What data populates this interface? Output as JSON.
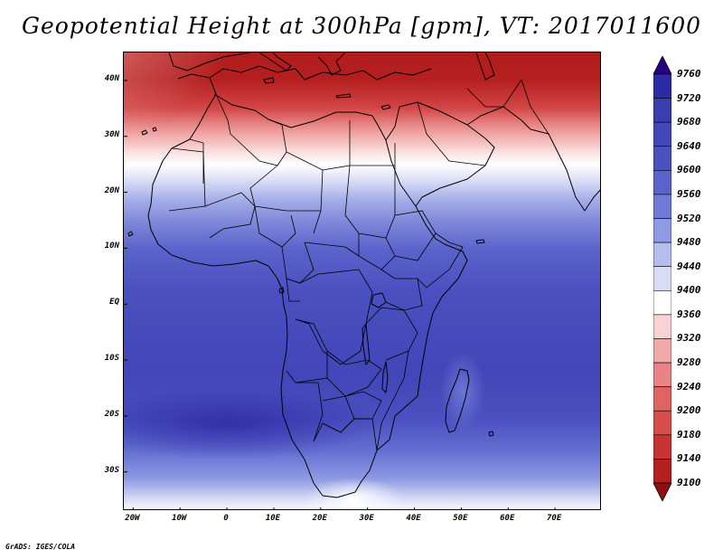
{
  "title": "Geopotential Height at 300hPa [gpm], VT: 2017011600",
  "lat_labels": [
    "40N",
    "30N",
    "20N",
    "10N",
    "EQ",
    "10S",
    "20S",
    "30S"
  ],
  "lat_values": [
    40,
    30,
    20,
    10,
    0,
    -10,
    -20,
    -30
  ],
  "lon_labels": [
    "20W",
    "10W",
    "0",
    "10E",
    "20E",
    "30E",
    "40E",
    "50E",
    "60E",
    "70E"
  ],
  "lon_values": [
    -20,
    -10,
    0,
    10,
    20,
    30,
    40,
    50,
    60,
    70
  ],
  "colorbar": {
    "levels": [
      "9760",
      "9720",
      "9680",
      "9640",
      "9600",
      "9560",
      "9520",
      "9480",
      "9440",
      "9400",
      "9360",
      "9320",
      "9280",
      "9240",
      "9200",
      "9180",
      "9140",
      "9100"
    ],
    "colors": [
      "#26007e",
      "#2d2ba4",
      "#3a3db0",
      "#4447b8",
      "#4c51c0",
      "#5a63cb",
      "#6f7bd6",
      "#8e9ae1",
      "#b5bdec",
      "#d9dcf5",
      "#ffffff",
      "#f9d3d3",
      "#f2a9a9",
      "#ea8484",
      "#e06363",
      "#d84c4c",
      "#c93232",
      "#b51f1f",
      "#8e1010"
    ]
  },
  "credit": "GrADS: IGES/COLA"
}
